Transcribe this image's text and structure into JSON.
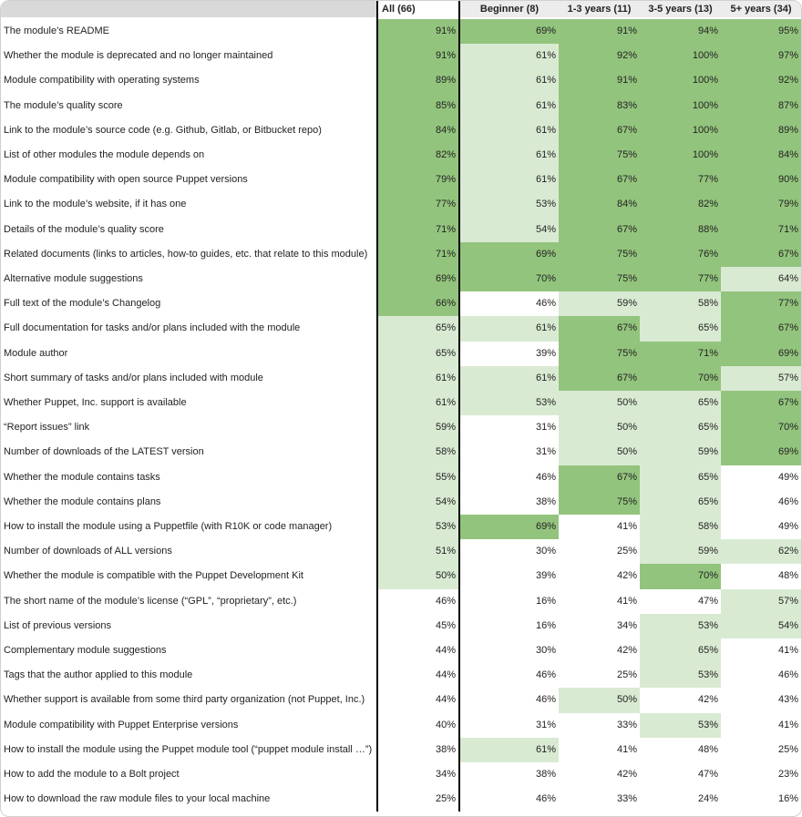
{
  "shades": {
    "d": "#93c47d",
    "l": "#d9ead3",
    "w": "#ffffff"
  },
  "header": {
    "columns": [
      "All (66)",
      "Beginner (8)",
      "1-3 years (11)",
      "3-5 years (13)",
      "5+ years (34)"
    ]
  },
  "rows": [
    {
      "label": "The module’s README",
      "cells": [
        [
          "91%",
          "d"
        ],
        [
          "69%",
          "d"
        ],
        [
          "91%",
          "d"
        ],
        [
          "94%",
          "d"
        ],
        [
          "95%",
          "d"
        ]
      ]
    },
    {
      "label": "Whether the module is deprecated and no longer maintained",
      "cells": [
        [
          "91%",
          "d"
        ],
        [
          "61%",
          "l"
        ],
        [
          "92%",
          "d"
        ],
        [
          "100%",
          "d"
        ],
        [
          "97%",
          "d"
        ]
      ]
    },
    {
      "label": "Module compatibility with operating systems",
      "cells": [
        [
          "89%",
          "d"
        ],
        [
          "61%",
          "l"
        ],
        [
          "91%",
          "d"
        ],
        [
          "100%",
          "d"
        ],
        [
          "92%",
          "d"
        ]
      ]
    },
    {
      "label": "The module’s quality score",
      "cells": [
        [
          "85%",
          "d"
        ],
        [
          "61%",
          "l"
        ],
        [
          "83%",
          "d"
        ],
        [
          "100%",
          "d"
        ],
        [
          "87%",
          "d"
        ]
      ]
    },
    {
      "label": "Link to the module’s source code (e.g. Github, Gitlab, or Bitbucket repo)",
      "cells": [
        [
          "84%",
          "d"
        ],
        [
          "61%",
          "l"
        ],
        [
          "67%",
          "d"
        ],
        [
          "100%",
          "d"
        ],
        [
          "89%",
          "d"
        ]
      ]
    },
    {
      "label": "List of other modules the module depends on",
      "cells": [
        [
          "82%",
          "d"
        ],
        [
          "61%",
          "l"
        ],
        [
          "75%",
          "d"
        ],
        [
          "100%",
          "d"
        ],
        [
          "84%",
          "d"
        ]
      ]
    },
    {
      "label": "Module compatibility with open source Puppet versions",
      "cells": [
        [
          "79%",
          "d"
        ],
        [
          "61%",
          "l"
        ],
        [
          "67%",
          "d"
        ],
        [
          "77%",
          "d"
        ],
        [
          "90%",
          "d"
        ]
      ]
    },
    {
      "label": "Link to the module’s website, if it has one",
      "cells": [
        [
          "77%",
          "d"
        ],
        [
          "53%",
          "l"
        ],
        [
          "84%",
          "d"
        ],
        [
          "82%",
          "d"
        ],
        [
          "79%",
          "d"
        ]
      ]
    },
    {
      "label": "Details of the module’s quality score",
      "cells": [
        [
          "71%",
          "d"
        ],
        [
          "54%",
          "l"
        ],
        [
          "67%",
          "d"
        ],
        [
          "88%",
          "d"
        ],
        [
          "71%",
          "d"
        ]
      ]
    },
    {
      "label": "Related documents (links to articles, how-to guides, etc. that relate to this module)",
      "cells": [
        [
          "71%",
          "d"
        ],
        [
          "69%",
          "d"
        ],
        [
          "75%",
          "d"
        ],
        [
          "76%",
          "d"
        ],
        [
          "67%",
          "d"
        ]
      ]
    },
    {
      "label": "Alternative module suggestions",
      "cells": [
        [
          "69%",
          "d"
        ],
        [
          "70%",
          "d"
        ],
        [
          "75%",
          "d"
        ],
        [
          "77%",
          "d"
        ],
        [
          "64%",
          "l"
        ]
      ]
    },
    {
      "label": "Full text of the module’s Changelog",
      "cells": [
        [
          "66%",
          "d"
        ],
        [
          "46%",
          "w"
        ],
        [
          "59%",
          "l"
        ],
        [
          "58%",
          "l"
        ],
        [
          "77%",
          "d"
        ]
      ]
    },
    {
      "label": "Full documentation for tasks and/or plans included with the module",
      "cells": [
        [
          "65%",
          "l"
        ],
        [
          "61%",
          "l"
        ],
        [
          "67%",
          "d"
        ],
        [
          "65%",
          "l"
        ],
        [
          "67%",
          "d"
        ]
      ]
    },
    {
      "label": "Module author",
      "cells": [
        [
          "65%",
          "l"
        ],
        [
          "39%",
          "w"
        ],
        [
          "75%",
          "d"
        ],
        [
          "71%",
          "d"
        ],
        [
          "69%",
          "d"
        ]
      ]
    },
    {
      "label": "Short summary of tasks and/or plans included with module",
      "cells": [
        [
          "61%",
          "l"
        ],
        [
          "61%",
          "l"
        ],
        [
          "67%",
          "d"
        ],
        [
          "70%",
          "d"
        ],
        [
          "57%",
          "l"
        ]
      ]
    },
    {
      "label": "Whether Puppet, Inc. support is available",
      "cells": [
        [
          "61%",
          "l"
        ],
        [
          "53%",
          "l"
        ],
        [
          "50%",
          "l"
        ],
        [
          "65%",
          "l"
        ],
        [
          "67%",
          "d"
        ]
      ]
    },
    {
      "label": "“Report issues” link",
      "cells": [
        [
          "59%",
          "l"
        ],
        [
          "31%",
          "w"
        ],
        [
          "50%",
          "l"
        ],
        [
          "65%",
          "l"
        ],
        [
          "70%",
          "d"
        ]
      ]
    },
    {
      "label": "Number of downloads of the LATEST version",
      "cells": [
        [
          "58%",
          "l"
        ],
        [
          "31%",
          "w"
        ],
        [
          "50%",
          "l"
        ],
        [
          "59%",
          "l"
        ],
        [
          "69%",
          "d"
        ]
      ]
    },
    {
      "label": "Whether the module contains tasks",
      "cells": [
        [
          "55%",
          "l"
        ],
        [
          "46%",
          "w"
        ],
        [
          "67%",
          "d"
        ],
        [
          "65%",
          "l"
        ],
        [
          "49%",
          "w"
        ]
      ]
    },
    {
      "label": "Whether the module contains plans",
      "cells": [
        [
          "54%",
          "l"
        ],
        [
          "38%",
          "w"
        ],
        [
          "75%",
          "d"
        ],
        [
          "65%",
          "l"
        ],
        [
          "46%",
          "w"
        ]
      ]
    },
    {
      "label": "How to install the module using a Puppetfile (with R10K or code manager)",
      "cells": [
        [
          "53%",
          "l"
        ],
        [
          "69%",
          "d"
        ],
        [
          "41%",
          "w"
        ],
        [
          "58%",
          "l"
        ],
        [
          "49%",
          "w"
        ]
      ]
    },
    {
      "label": "Number of downloads of ALL versions",
      "cells": [
        [
          "51%",
          "l"
        ],
        [
          "30%",
          "w"
        ],
        [
          "25%",
          "w"
        ],
        [
          "59%",
          "l"
        ],
        [
          "62%",
          "l"
        ]
      ]
    },
    {
      "label": "Whether the module is compatible with the Puppet Development Kit",
      "cells": [
        [
          "50%",
          "l"
        ],
        [
          "39%",
          "w"
        ],
        [
          "42%",
          "w"
        ],
        [
          "70%",
          "d"
        ],
        [
          "48%",
          "w"
        ]
      ]
    },
    {
      "label": "The short name of the module’s license (“GPL”, “proprietary”, etc.)",
      "cells": [
        [
          "46%",
          "w"
        ],
        [
          "16%",
          "w"
        ],
        [
          "41%",
          "w"
        ],
        [
          "47%",
          "w"
        ],
        [
          "57%",
          "l"
        ]
      ]
    },
    {
      "label": "List of previous versions",
      "cells": [
        [
          "45%",
          "w"
        ],
        [
          "16%",
          "w"
        ],
        [
          "34%",
          "w"
        ],
        [
          "53%",
          "l"
        ],
        [
          "54%",
          "l"
        ]
      ]
    },
    {
      "label": "Complementary module suggestions",
      "cells": [
        [
          "44%",
          "w"
        ],
        [
          "30%",
          "w"
        ],
        [
          "42%",
          "w"
        ],
        [
          "65%",
          "l"
        ],
        [
          "41%",
          "w"
        ]
      ]
    },
    {
      "label": "Tags that the author applied to this module",
      "cells": [
        [
          "44%",
          "w"
        ],
        [
          "46%",
          "w"
        ],
        [
          "25%",
          "w"
        ],
        [
          "53%",
          "l"
        ],
        [
          "46%",
          "w"
        ]
      ]
    },
    {
      "label": "Whether support is available from some third party organization (not Puppet, Inc.)",
      "cells": [
        [
          "44%",
          "w"
        ],
        [
          "46%",
          "w"
        ],
        [
          "50%",
          "l"
        ],
        [
          "42%",
          "w"
        ],
        [
          "43%",
          "w"
        ]
      ]
    },
    {
      "label": "Module compatibility with Puppet Enterprise versions",
      "cells": [
        [
          "40%",
          "w"
        ],
        [
          "31%",
          "w"
        ],
        [
          "33%",
          "w"
        ],
        [
          "53%",
          "l"
        ],
        [
          "41%",
          "w"
        ]
      ]
    },
    {
      "label": "How to install the module using the Puppet module tool (“puppet module install …”)",
      "cells": [
        [
          "38%",
          "w"
        ],
        [
          "61%",
          "l"
        ],
        [
          "41%",
          "w"
        ],
        [
          "48%",
          "w"
        ],
        [
          "25%",
          "w"
        ]
      ]
    },
    {
      "label": "How to add the module to a Bolt project",
      "cells": [
        [
          "34%",
          "w"
        ],
        [
          "38%",
          "w"
        ],
        [
          "42%",
          "w"
        ],
        [
          "47%",
          "w"
        ],
        [
          "23%",
          "w"
        ]
      ]
    },
    {
      "label": "How to download the raw module files to your local machine",
      "cells": [
        [
          "25%",
          "w"
        ],
        [
          "46%",
          "w"
        ],
        [
          "33%",
          "w"
        ],
        [
          "24%",
          "w"
        ],
        [
          "16%",
          "w"
        ]
      ]
    }
  ]
}
